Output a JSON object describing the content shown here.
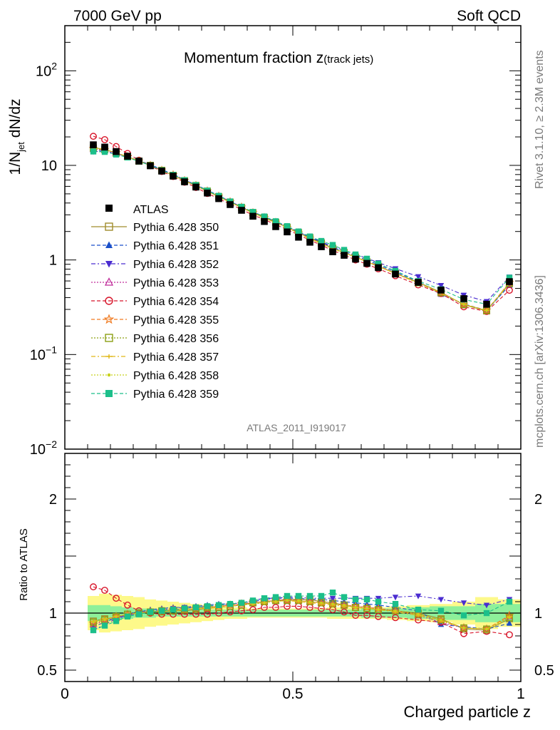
{
  "header": {
    "energy_label": "7000 GeV pp",
    "process_label": "Soft QCD"
  },
  "side": {
    "rivet_label": "Rivet 3.1.10, ≥ 2.3M events",
    "source_label": "mcplots.cern.ch [arXiv:1306.3436]"
  },
  "chart_data": {
    "type": "line",
    "title": "Momentum fraction",
    "title_var": "z",
    "title_sub": "(track jets)",
    "analysis_label": "ATLAS_2011_I919017",
    "xlabel": "Charged particle z",
    "ylabel_main": "1/N_jet dN/dz",
    "ylabel_ratio": "Ratio to ATLAS",
    "xlim": [
      0,
      1
    ],
    "ylim_main": [
      0.01,
      300
    ],
    "ylim_ratio": [
      0.4,
      2.4
    ],
    "x_ticks": [
      "0",
      "0.5",
      "1"
    ],
    "y_ticks_main": [
      "10^-2",
      "10^-1",
      "1",
      "10",
      "10^2"
    ],
    "y_ticks_ratio": [
      "0.5",
      "1",
      "2"
    ],
    "x": [
      0.0625,
      0.0875,
      0.1125,
      0.1375,
      0.1625,
      0.1875,
      0.2125,
      0.2375,
      0.2625,
      0.2875,
      0.3125,
      0.3375,
      0.3625,
      0.3875,
      0.4125,
      0.4375,
      0.4625,
      0.4875,
      0.5125,
      0.5375,
      0.5625,
      0.5875,
      0.6125,
      0.6375,
      0.6625,
      0.6875,
      0.725,
      0.775,
      0.825,
      0.875,
      0.925,
      0.975
    ],
    "data": {
      "name": "ATLAS",
      "values": [
        16.5,
        15.6,
        14.0,
        12.5,
        11.1,
        9.9,
        8.7,
        7.7,
        6.7,
        5.9,
        5.1,
        4.45,
        3.85,
        3.35,
        2.9,
        2.55,
        2.25,
        1.98,
        1.74,
        1.54,
        1.38,
        1.22,
        1.12,
        1.02,
        0.92,
        0.83,
        0.71,
        0.58,
        0.48,
        0.39,
        0.34,
        0.59
      ],
      "band_inner": [
        0.07,
        0.07,
        0.06,
        0.05,
        0.04,
        0.04,
        0.03,
        0.03,
        0.03,
        0.03,
        0.03,
        0.03,
        0.03,
        0.03,
        0.03,
        0.03,
        0.03,
        0.03,
        0.03,
        0.03,
        0.03,
        0.03,
        0.03,
        0.03,
        0.04,
        0.04,
        0.04,
        0.05,
        0.06,
        0.06,
        0.08,
        0.08
      ],
      "band_outer": [
        0.15,
        0.17,
        0.16,
        0.15,
        0.14,
        0.12,
        0.11,
        0.1,
        0.09,
        0.08,
        0.07,
        0.06,
        0.05,
        0.05,
        0.04,
        0.04,
        0.04,
        0.04,
        0.04,
        0.04,
        0.04,
        0.05,
        0.05,
        0.05,
        0.05,
        0.05,
        0.06,
        0.07,
        0.08,
        0.1,
        0.14,
        0.12
      ]
    },
    "series": [
      {
        "name": "Pythia 6.428 350",
        "color": "#a08c2c",
        "marker": "square-open",
        "dash": "",
        "ratio": [
          0.93,
          0.95,
          0.96,
          0.99,
          1.0,
          1.01,
          1.01,
          1.02,
          1.02,
          1.03,
          1.04,
          1.05,
          1.06,
          1.07,
          1.09,
          1.1,
          1.11,
          1.12,
          1.12,
          1.12,
          1.1,
          1.09,
          1.07,
          1.05,
          1.04,
          1.03,
          1.02,
          1.0,
          0.95,
          0.86,
          0.85,
          0.95
        ]
      },
      {
        "name": "Pythia 6.428 351",
        "color": "#1a4fc9",
        "marker": "triangle-up",
        "dash": "5,3",
        "ratio": [
          0.88,
          0.92,
          0.96,
          0.99,
          1.01,
          1.03,
          1.04,
          1.05,
          1.05,
          1.06,
          1.07,
          1.08,
          1.08,
          1.09,
          1.1,
          1.12,
          1.13,
          1.13,
          1.13,
          1.12,
          1.12,
          1.11,
          1.1,
          1.09,
          1.08,
          1.07,
          1.05,
          1.02,
          0.9,
          0.88,
          0.86,
          0.91
        ]
      },
      {
        "name": "Pythia 6.428 352",
        "color": "#4a2cd0",
        "marker": "triangle-down",
        "dash": "6,3,2,3",
        "ratio": [
          0.85,
          0.9,
          0.95,
          0.98,
          1.0,
          1.02,
          1.03,
          1.04,
          1.05,
          1.05,
          1.06,
          1.07,
          1.08,
          1.09,
          1.11,
          1.13,
          1.13,
          1.14,
          1.14,
          1.13,
          1.13,
          1.13,
          1.13,
          1.13,
          1.13,
          1.13,
          1.14,
          1.15,
          1.12,
          1.09,
          1.07,
          1.12
        ]
      },
      {
        "name": "Pythia 6.428 353",
        "color": "#c02c9a",
        "marker": "triangle-open",
        "dash": "2,2",
        "ratio": [
          0.9,
          0.93,
          0.96,
          0.99,
          1.0,
          1.01,
          1.02,
          1.03,
          1.03,
          1.04,
          1.05,
          1.06,
          1.07,
          1.08,
          1.09,
          1.1,
          1.11,
          1.12,
          1.11,
          1.1,
          1.09,
          1.08,
          1.07,
          1.06,
          1.05,
          1.04,
          1.02,
          0.98,
          0.92,
          0.87,
          0.86,
          0.97
        ]
      },
      {
        "name": "Pythia 6.428 354",
        "color": "#d8152a",
        "marker": "circle-open",
        "dash": "5,3",
        "ratio": [
          1.23,
          1.2,
          1.13,
          1.07,
          1.02,
          1.0,
          0.99,
          0.99,
          0.99,
          0.99,
          0.99,
          1.0,
          1.01,
          1.02,
          1.03,
          1.05,
          1.05,
          1.06,
          1.06,
          1.05,
          1.04,
          1.03,
          1.01,
          0.98,
          0.98,
          0.97,
          0.96,
          0.94,
          0.92,
          0.82,
          0.84,
          0.81
        ]
      },
      {
        "name": "Pythia 6.428 355",
        "color": "#f07a20",
        "marker": "star-open",
        "dash": "5,3",
        "ratio": [
          0.91,
          0.94,
          0.97,
          0.99,
          1.0,
          1.01,
          1.02,
          1.03,
          1.03,
          1.04,
          1.05,
          1.06,
          1.07,
          1.08,
          1.09,
          1.1,
          1.11,
          1.11,
          1.11,
          1.1,
          1.09,
          1.08,
          1.07,
          1.06,
          1.05,
          1.04,
          1.02,
          0.99,
          0.94,
          0.87,
          0.86,
          0.98
        ]
      },
      {
        "name": "Pythia 6.428 356",
        "color": "#8ca014",
        "marker": "square-open",
        "dash": "2,2",
        "ratio": [
          0.92,
          0.94,
          0.97,
          0.99,
          1.0,
          1.01,
          1.02,
          1.02,
          1.03,
          1.04,
          1.05,
          1.05,
          1.06,
          1.07,
          1.09,
          1.1,
          1.11,
          1.11,
          1.11,
          1.1,
          1.09,
          1.08,
          1.07,
          1.05,
          1.04,
          1.03,
          1.02,
          0.99,
          0.94,
          0.87,
          0.86,
          0.96
        ]
      },
      {
        "name": "Pythia 6.428 357",
        "color": "#e0b818",
        "marker": "cross",
        "dash": "6,3,2,3",
        "ratio": [
          0.93,
          0.95,
          0.97,
          0.99,
          1.0,
          1.01,
          1.02,
          1.02,
          1.03,
          1.04,
          1.04,
          1.05,
          1.06,
          1.07,
          1.08,
          1.09,
          1.1,
          1.11,
          1.1,
          1.09,
          1.08,
          1.07,
          1.06,
          1.05,
          1.04,
          1.03,
          1.01,
          0.98,
          0.93,
          0.87,
          0.86,
          0.97
        ]
      },
      {
        "name": "Pythia 6.428 358",
        "color": "#c8d21c",
        "marker": "dot",
        "dash": "2,2",
        "ratio": [
          0.92,
          0.94,
          0.97,
          0.99,
          1.0,
          1.01,
          1.02,
          1.02,
          1.03,
          1.04,
          1.05,
          1.05,
          1.06,
          1.07,
          1.08,
          1.09,
          1.1,
          1.11,
          1.11,
          1.1,
          1.09,
          1.08,
          1.07,
          1.05,
          1.04,
          1.03,
          1.02,
          0.99,
          0.94,
          0.87,
          0.86,
          0.96
        ]
      },
      {
        "name": "Pythia 6.428 359",
        "color": "#1cbf8a",
        "marker": "square",
        "dash": "5,3",
        "ratio": [
          0.85,
          0.89,
          0.93,
          0.97,
          0.99,
          1.01,
          1.02,
          1.03,
          1.04,
          1.05,
          1.06,
          1.07,
          1.08,
          1.09,
          1.11,
          1.13,
          1.14,
          1.15,
          1.15,
          1.15,
          1.15,
          1.18,
          1.14,
          1.12,
          1.12,
          1.1,
          1.08,
          1.03,
          1.02,
          0.98,
          1.0,
          1.1
        ]
      }
    ]
  }
}
